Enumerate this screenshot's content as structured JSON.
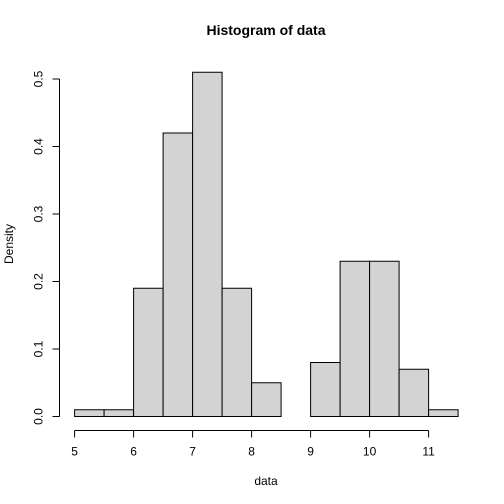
{
  "chart_data": {
    "type": "bar",
    "title": "Histogram of data",
    "xlabel": "data",
    "ylabel": "Density",
    "xlim": [
      5,
      11.5
    ],
    "ylim": [
      0,
      0.51
    ],
    "bin_width": 0.5,
    "bins": [
      {
        "from": 5.0,
        "to": 5.5,
        "density": 0.01
      },
      {
        "from": 5.5,
        "to": 6.0,
        "density": 0.01
      },
      {
        "from": 6.0,
        "to": 6.5,
        "density": 0.19
      },
      {
        "from": 6.5,
        "to": 7.0,
        "density": 0.42
      },
      {
        "from": 7.0,
        "to": 7.5,
        "density": 0.51
      },
      {
        "from": 7.5,
        "to": 8.0,
        "density": 0.19
      },
      {
        "from": 8.0,
        "to": 8.5,
        "density": 0.05
      },
      {
        "from": 8.5,
        "to": 9.0,
        "density": 0.0
      },
      {
        "from": 9.0,
        "to": 9.5,
        "density": 0.08
      },
      {
        "from": 9.5,
        "to": 10.0,
        "density": 0.23
      },
      {
        "from": 10.0,
        "to": 10.5,
        "density": 0.23
      },
      {
        "from": 10.5,
        "to": 11.0,
        "density": 0.07
      },
      {
        "from": 11.0,
        "to": 11.5,
        "density": 0.01
      }
    ],
    "x_ticks": [
      "5",
      "6",
      "7",
      "8",
      "9",
      "10",
      "11"
    ],
    "y_ticks": [
      "0.0",
      "0.1",
      "0.2",
      "0.3",
      "0.4",
      "0.5"
    ],
    "colors": {
      "bar_fill": "#d3d3d3",
      "bar_stroke": "#000000"
    }
  }
}
